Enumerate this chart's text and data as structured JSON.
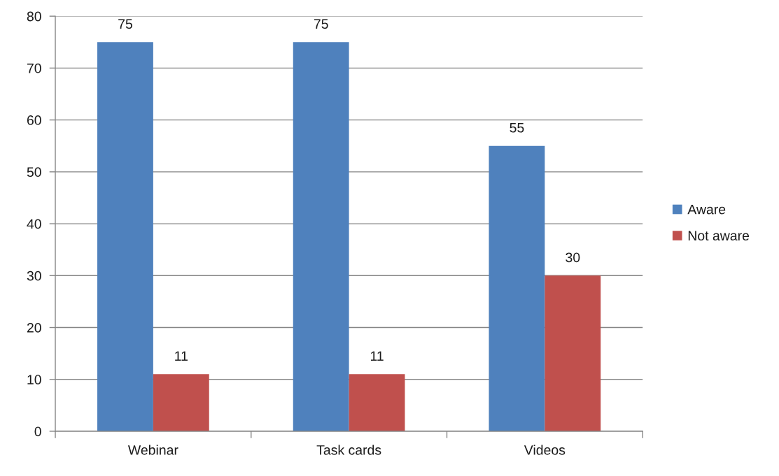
{
  "chart_data": {
    "type": "bar",
    "categories": [
      "Webinar",
      "Task cards",
      "Videos"
    ],
    "series": [
      {
        "name": "Aware",
        "color": "#4f81bd",
        "values": [
          75,
          75,
          55
        ]
      },
      {
        "name": "Not aware",
        "color": "#c0504d",
        "values": [
          11,
          11,
          30
        ]
      }
    ],
    "ylim": [
      0,
      80
    ],
    "yticks": [
      0,
      10,
      20,
      30,
      40,
      50,
      60,
      70,
      80
    ],
    "grid": "y",
    "legend": "right",
    "data_labels": true
  }
}
